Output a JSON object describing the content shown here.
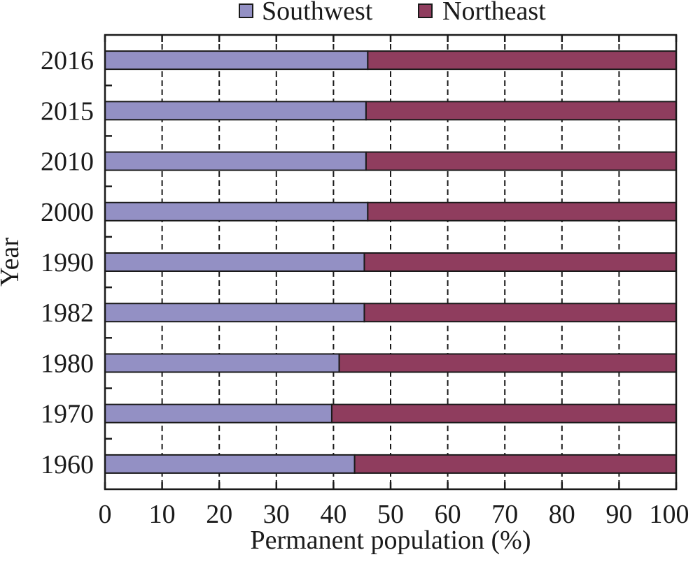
{
  "chart_data": {
    "type": "bar",
    "orientation": "horizontal",
    "stacked": true,
    "categories": [
      "2016",
      "2015",
      "2010",
      "2000",
      "1990",
      "1982",
      "1980",
      "1970",
      "1960"
    ],
    "series": [
      {
        "name": "Southwest",
        "color": "#9390c4",
        "values": [
          46.0,
          45.7,
          45.7,
          46.0,
          45.4,
          45.4,
          41.0,
          39.7,
          43.7
        ]
      },
      {
        "name": "Northeast",
        "color": "#8f3d5e",
        "values": [
          54.0,
          54.3,
          54.3,
          54.0,
          54.6,
          54.6,
          59.0,
          60.3,
          56.3
        ]
      }
    ],
    "xlabel": "Permanent population (%)",
    "ylabel": "Year",
    "xlim": [
      0,
      100
    ],
    "xticks": [
      "0",
      "10",
      "20",
      "30",
      "40",
      "50",
      "60",
      "70",
      "80",
      "90",
      "100"
    ],
    "grid": "vertical dashed",
    "legend_position": "top"
  }
}
